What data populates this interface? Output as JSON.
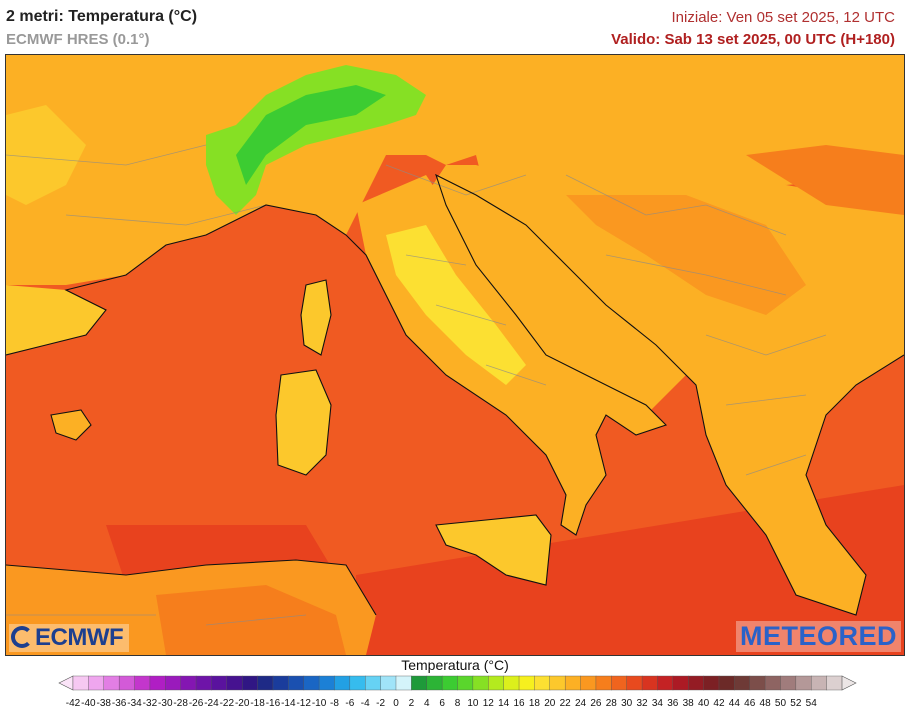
{
  "header": {
    "title": "2 metri: Temperatura (°C)",
    "model": "ECMWF HRES (0.1°)",
    "init": "Iniziale: Ven 05 set 2025, 12 UTC",
    "valid": "Valido: Sab 13 set 2025, 00 UTC (H+180)"
  },
  "logos": {
    "left": "ECMWF",
    "right": "METEORED"
  },
  "legend": {
    "title": "Temperatura (°C)",
    "ticks": [
      "-42",
      "-40",
      "-38",
      "-36",
      "-34",
      "-32",
      "-30",
      "-28",
      "-26",
      "-24",
      "-22",
      "-20",
      "-18",
      "-16",
      "-14",
      "-12",
      "-10",
      "-8",
      "-6",
      "-4",
      "-2",
      "0",
      "2",
      "4",
      "6",
      "8",
      "10",
      "12",
      "14",
      "16",
      "18",
      "20",
      "22",
      "24",
      "26",
      "28",
      "30",
      "32",
      "34",
      "36",
      "38",
      "40",
      "42",
      "44",
      "46",
      "48",
      "50",
      "52",
      "54"
    ],
    "colors": [
      "#f6c8f2",
      "#efa6ee",
      "#e27ee4",
      "#d35ad8",
      "#c336cc",
      "#b01ec4",
      "#9a1abc",
      "#8416b2",
      "#6e14a8",
      "#5a129e",
      "#461290",
      "#301684",
      "#1e2a86",
      "#1a3c9c",
      "#1a50b0",
      "#1a66c4",
      "#1c80d6",
      "#22a0e4",
      "#36bcee",
      "#66d2f4",
      "#a0e4f8",
      "#d4f4fa",
      "#1e9a3a",
      "#2cb436",
      "#3ccc32",
      "#5ad62c",
      "#86e024",
      "#b4ea1e",
      "#dcf01c",
      "#f6f01e",
      "#fce032",
      "#fcc82c",
      "#fcb024",
      "#fa9820",
      "#f67e1c",
      "#f0641e",
      "#e84a1e",
      "#d83420",
      "#c42224",
      "#ac1a24",
      "#941c24",
      "#7c2024",
      "#6c2a28",
      "#6e3a36",
      "#7c4e4a",
      "#8e6462",
      "#a07c7c",
      "#b49898",
      "#c8b4b4",
      "#dcd0d0"
    ]
  }
}
